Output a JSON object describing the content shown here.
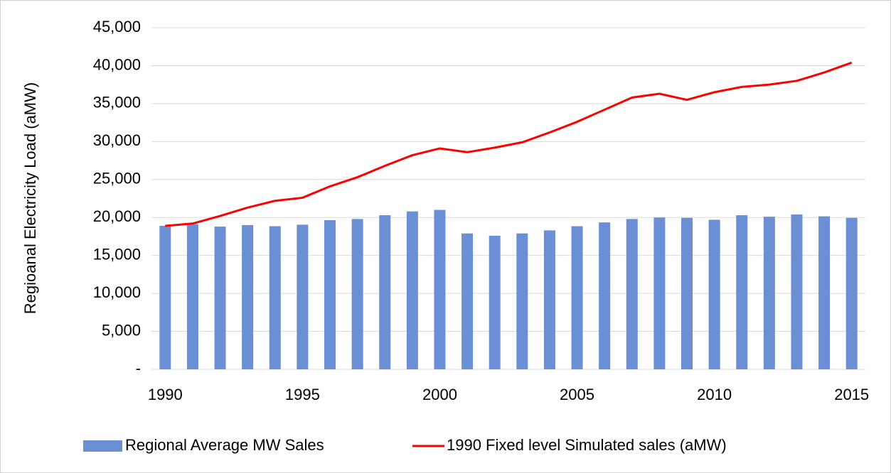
{
  "chart_data": {
    "type": "bar-line",
    "y_axis_label": "Regioanal Electricity Load (aMW)",
    "categories": [
      "1990",
      null,
      null,
      null,
      null,
      "1995",
      null,
      null,
      null,
      null,
      "2000",
      null,
      null,
      null,
      null,
      "2005",
      null,
      null,
      null,
      null,
      "2010",
      null,
      null,
      null,
      null,
      "2015"
    ],
    "series": [
      {
        "name": "Regional Average MW Sales",
        "type": "bar",
        "color": "#6a8fd4",
        "values": [
          18900,
          19100,
          18800,
          19000,
          18850,
          19050,
          19650,
          19800,
          20300,
          20800,
          21000,
          17900,
          17600,
          17900,
          18300,
          18850,
          19350,
          19800,
          20000,
          19950,
          19700,
          20300,
          20100,
          20400,
          20150,
          19950
        ]
      },
      {
        "name": "1990 Fixed level Simulated sales (aMW)",
        "type": "line",
        "color": "#ff0000",
        "values": [
          18900,
          19200,
          20200,
          21300,
          22200,
          22600,
          24100,
          25300,
          26800,
          28200,
          29100,
          28600,
          29200,
          29900,
          31200,
          32600,
          34200,
          35800,
          36300,
          35500,
          36500,
          37200,
          37500,
          38000,
          39100,
          40400
        ]
      }
    ],
    "ylim": [
      0,
      45000
    ],
    "yticks": [
      {
        "value": 0,
        "label": "-"
      },
      {
        "value": 5000,
        "label": "5,000"
      },
      {
        "value": 10000,
        "label": "10,000"
      },
      {
        "value": 15000,
        "label": "15,000"
      },
      {
        "value": 20000,
        "label": "20,000"
      },
      {
        "value": 25000,
        "label": "25,000"
      },
      {
        "value": 30000,
        "label": "30,000"
      },
      {
        "value": 35000,
        "label": "35,000"
      },
      {
        "value": 40000,
        "label": "40,000"
      },
      {
        "value": 45000,
        "label": "45,000"
      }
    ],
    "grid": true,
    "legend": "bottom"
  }
}
